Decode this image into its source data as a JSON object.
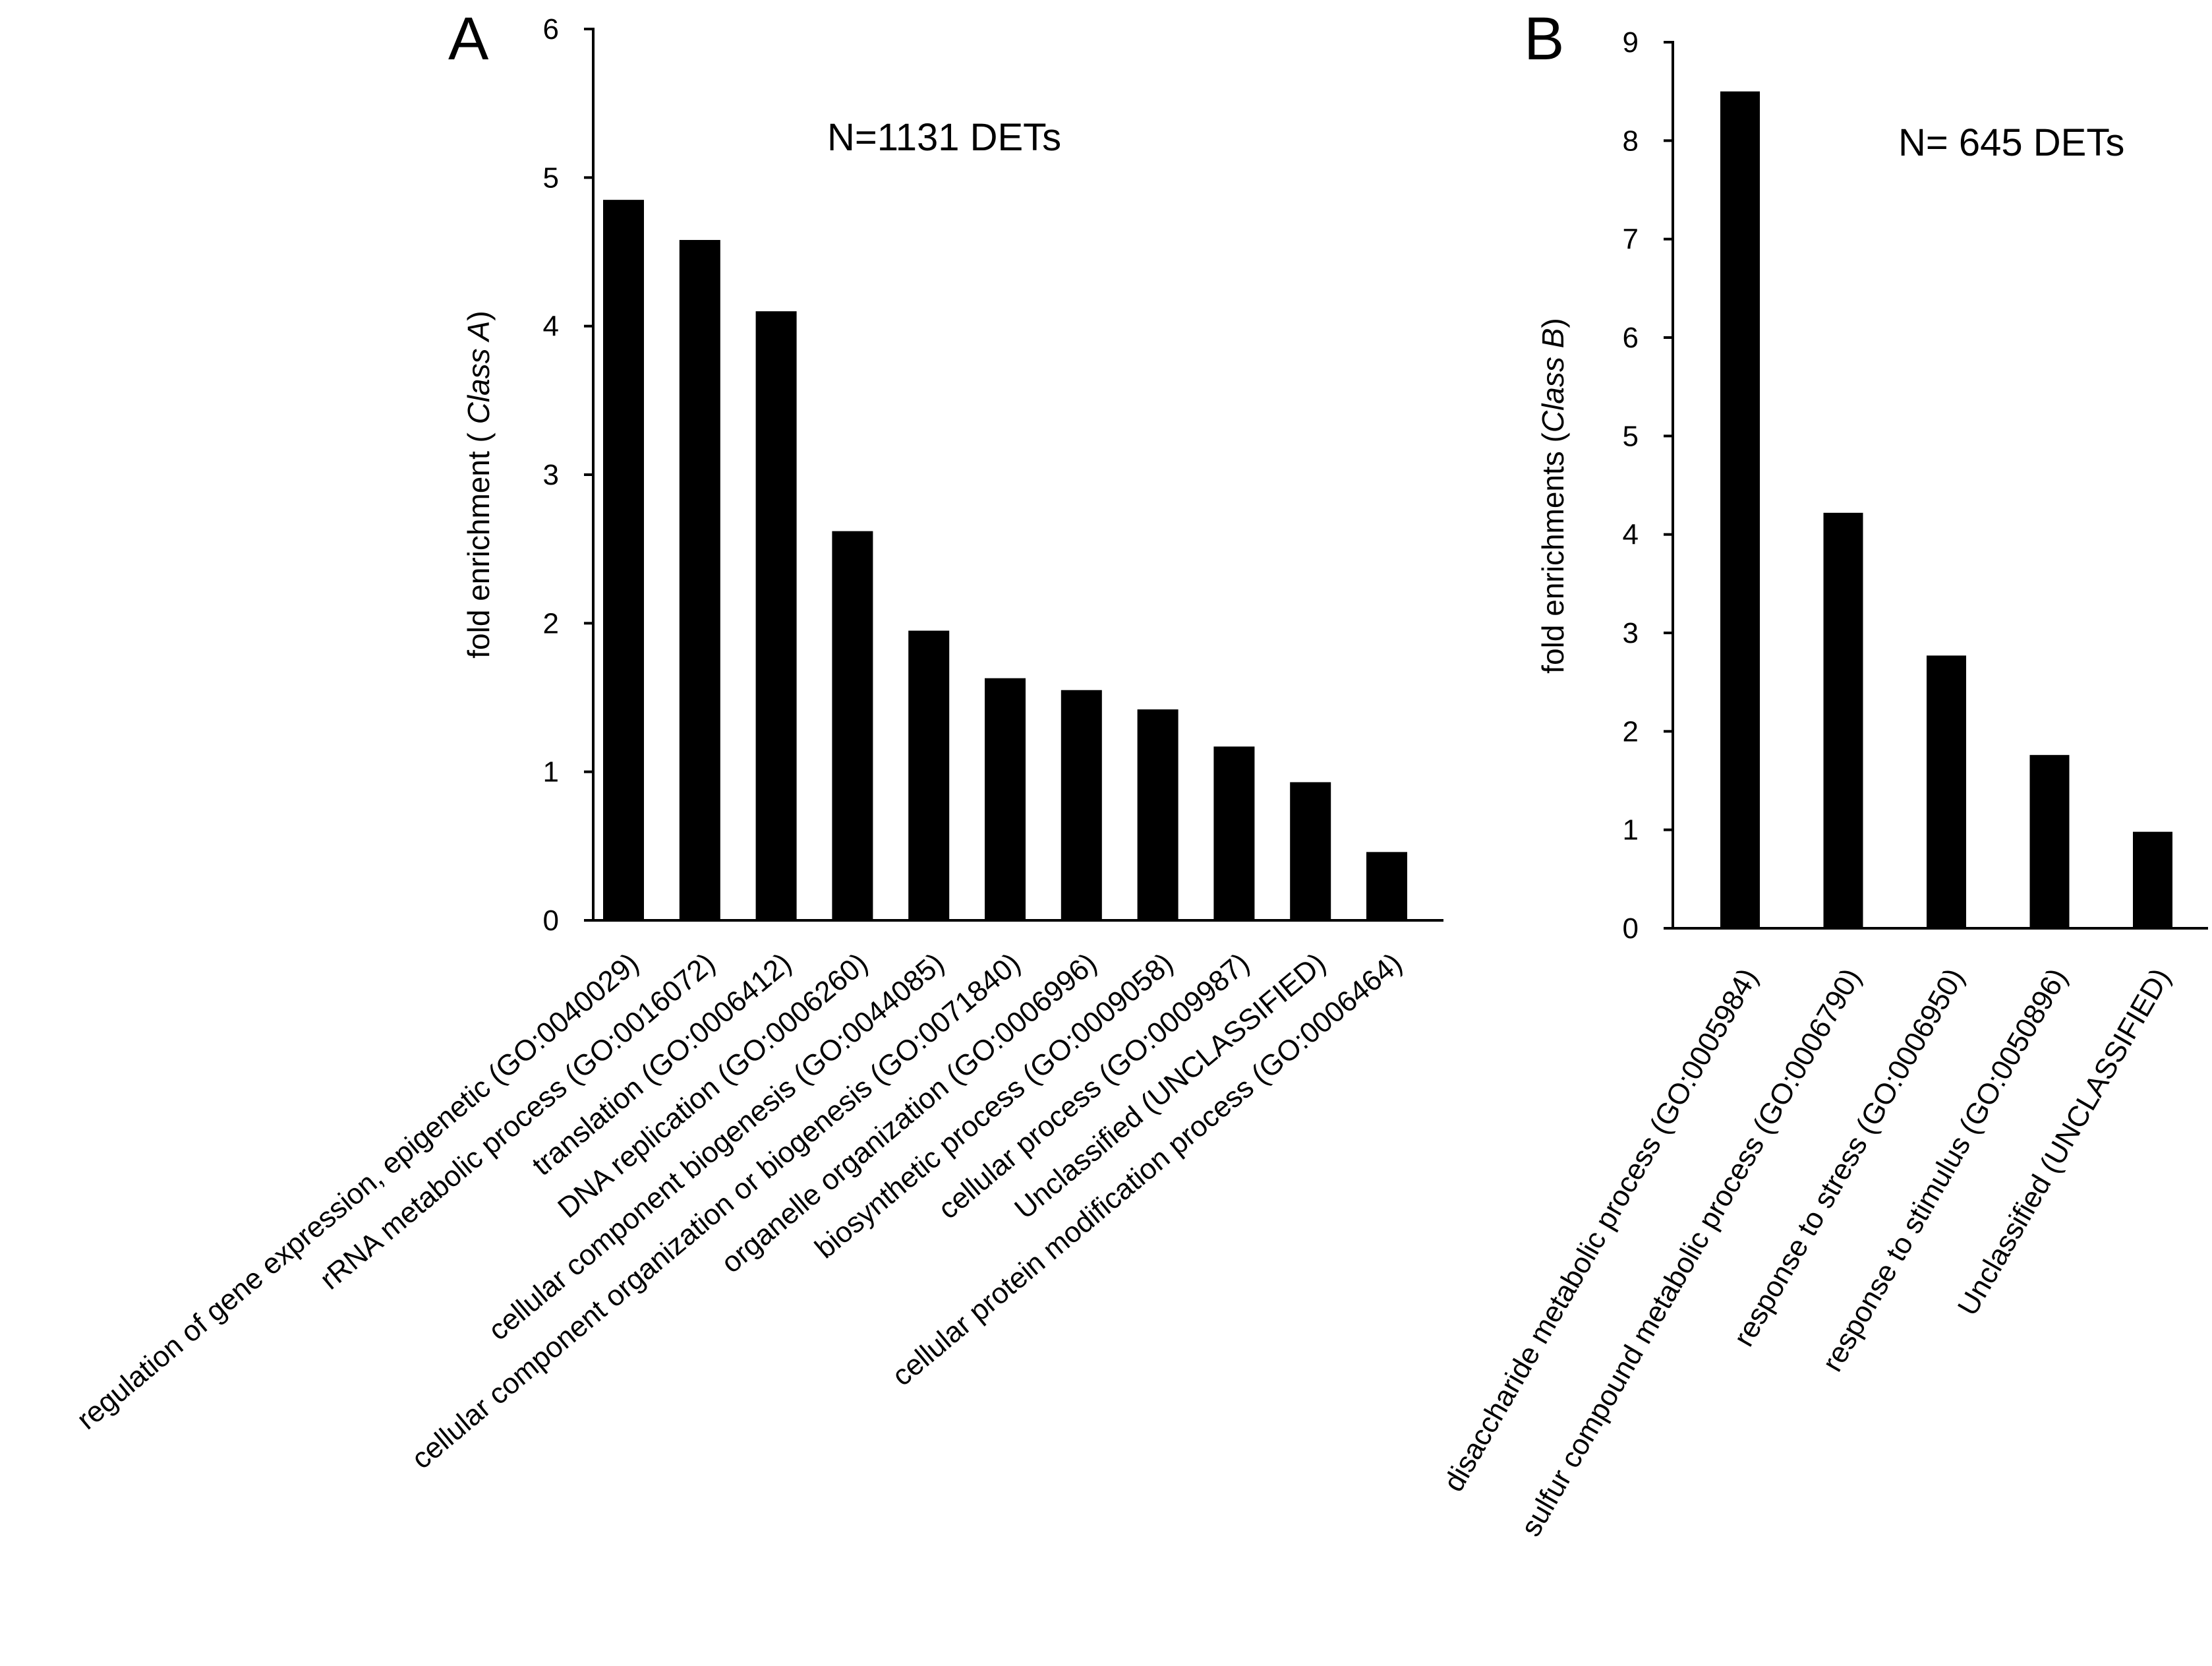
{
  "chart_data": [
    {
      "panel": "A",
      "type": "bar",
      "title": "",
      "annotation": "N=1131 DETs",
      "xlabel": "",
      "ylabel_prefix": "fold enrichment ( ",
      "ylabel_italic": "Class A",
      "ylabel_suffix": ")",
      "ylim": [
        0,
        6
      ],
      "yticks": [
        "0",
        "1",
        "2",
        "3",
        "4",
        "5",
        "6"
      ],
      "grid": false,
      "categories": [
        "regulation of gene expression, epigenetic (GO:0040029)",
        "rRNA metabolic process (GO:0016072)",
        "translation (GO:0006412)",
        "DNA replication (GO:0006260)",
        "cellular component biogenesis (GO:0044085)",
        "cellular component organization or biogenesis (GO:0071840)",
        "organelle organization (GO:0006996)",
        "biosynthetic process (GO:0009058)",
        "cellular process (GO:0009987)",
        "Unclassified (UNCLASSIFIED)",
        "cellular protein modification process (GO:0006464)"
      ],
      "values": [
        4.85,
        4.58,
        4.1,
        2.62,
        1.95,
        1.63,
        1.55,
        1.42,
        1.17,
        0.93,
        0.46
      ]
    },
    {
      "panel": "B",
      "type": "bar",
      "title": "",
      "annotation": "N= 645 DETs",
      "xlabel": "",
      "ylabel_prefix": "fold enrichments (",
      "ylabel_italic": "Class B",
      "ylabel_suffix": ")",
      "ylim": [
        0,
        9
      ],
      "yticks": [
        "0",
        "1",
        "2",
        "3",
        "4",
        "5",
        "6",
        "7",
        "8",
        "9"
      ],
      "grid": false,
      "categories": [
        "disaccharide metabolic process (GO:0005984)",
        "sulfur compound metabolic process (GO:0006790)",
        "response to stress (GO:0006950)",
        "response to stimulus (GO:0050896)",
        "Unclassified (UNCLASSIFIED)"
      ],
      "values": [
        8.5,
        4.22,
        2.77,
        1.76,
        0.98
      ]
    }
  ]
}
